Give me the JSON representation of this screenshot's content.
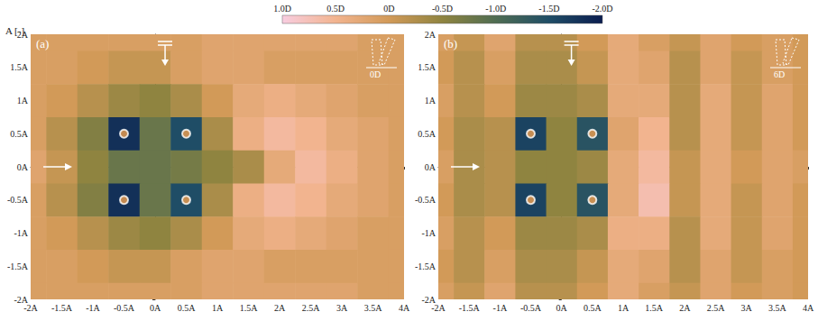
{
  "colorbar": {
    "title": "A [-]",
    "range": [
      -2,
      1
    ],
    "ticks": [
      {
        "value": 1,
        "label": "1.0D"
      },
      {
        "value": 0.5,
        "label": "0.5D"
      },
      {
        "value": 0,
        "label": "0D"
      },
      {
        "value": -0.5,
        "label": "-0.5D"
      },
      {
        "value": -1,
        "label": "-1.0D"
      },
      {
        "value": -1.5,
        "label": "-1.5D"
      },
      {
        "value": -2,
        "label": "-2.0D"
      }
    ]
  },
  "chart_data": [
    {
      "type": "heatmap",
      "title": "(a)",
      "inset_label": "0D",
      "xlim": [
        -2,
        4
      ],
      "ylim": [
        -2,
        2
      ],
      "xticks": [
        {
          "value": -2,
          "label": "-2A"
        },
        {
          "value": -1.5,
          "label": "-1.5A"
        },
        {
          "value": -1,
          "label": "-1A"
        },
        {
          "value": -0.5,
          "label": "-0.5A"
        },
        {
          "value": 0,
          "label": "0A"
        },
        {
          "value": 0.5,
          "label": "0.5A"
        },
        {
          "value": 1,
          "label": "1A"
        },
        {
          "value": 1.5,
          "label": "1.5A"
        },
        {
          "value": 2,
          "label": "2A"
        },
        {
          "value": 2.5,
          "label": "2.5A"
        },
        {
          "value": 3,
          "label": "3A"
        },
        {
          "value": 3.5,
          "label": "3.5A"
        },
        {
          "value": 4,
          "label": "4A"
        }
      ],
      "yticks": [
        {
          "value": 2,
          "label": "2A"
        },
        {
          "value": 1.5,
          "label": "1.5A"
        },
        {
          "value": 1,
          "label": "1A"
        },
        {
          "value": 0.5,
          "label": "0.5A"
        },
        {
          "value": 0,
          "label": "0A"
        },
        {
          "value": -0.5,
          "label": "-0.5A"
        },
        {
          "value": -1,
          "label": "-1A"
        },
        {
          "value": -1.5,
          "label": "-1.5A"
        },
        {
          "value": -2,
          "label": "-2A"
        }
      ],
      "x": [
        -2,
        -1.5,
        -1,
        -0.5,
        0,
        0.5,
        1,
        1.5,
        2,
        2.5,
        3,
        3.5,
        4
      ],
      "y": [
        2,
        1.5,
        1,
        0.5,
        0,
        -0.5,
        -1,
        -1.5,
        -2
      ],
      "cells": [
        [
          0.1,
          0.1,
          0.1,
          0.1,
          0.1,
          0.1,
          0.2,
          0.2,
          0.2,
          0.2,
          0.2,
          0.1,
          0.1
        ],
        [
          0.1,
          0.1,
          0.0,
          -0.1,
          -0.1,
          0.1,
          0.2,
          0.2,
          0.1,
          0.1,
          0.1,
          0.1,
          0.1
        ],
        [
          0.1,
          0.0,
          -0.2,
          -0.4,
          -0.5,
          -0.3,
          0.0,
          0.3,
          0.4,
          0.3,
          0.2,
          0.1,
          0.1
        ],
        [
          0.1,
          -0.2,
          -0.6,
          -1.8,
          -0.8,
          -1.5,
          -0.3,
          0.4,
          0.6,
          0.5,
          0.3,
          0.2,
          0.1
        ],
        [
          0.2,
          -0.1,
          -0.5,
          -0.8,
          -0.8,
          -0.7,
          -0.5,
          -0.3,
          0.3,
          0.6,
          0.4,
          0.2,
          0.1
        ],
        [
          0.1,
          -0.2,
          -0.6,
          -1.8,
          -0.8,
          -1.5,
          -0.3,
          0.4,
          0.6,
          0.5,
          0.3,
          0.2,
          0.1
        ],
        [
          0.1,
          0.0,
          -0.2,
          -0.4,
          -0.5,
          -0.3,
          0.0,
          0.3,
          0.4,
          0.3,
          0.2,
          0.1,
          0.1
        ],
        [
          0.1,
          0.1,
          0.0,
          -0.1,
          -0.1,
          0.1,
          0.2,
          0.2,
          0.1,
          0.1,
          0.1,
          0.1,
          0.1
        ],
        [
          0.1,
          0.1,
          0.1,
          0.1,
          0.1,
          0.1,
          0.2,
          0.2,
          0.2,
          0.2,
          0.2,
          0.1,
          0.1
        ]
      ],
      "piles": {
        "marker": "circle",
        "x": [
          -0.5,
          0.5,
          -0.5,
          0.5
        ],
        "y": [
          0.5,
          0.5,
          -0.5,
          -0.5
        ]
      }
    },
    {
      "type": "heatmap",
      "title": "(b)",
      "inset_label": "6D",
      "xlim": [
        -2,
        4
      ],
      "ylim": [
        -2,
        2
      ],
      "xticks": [
        {
          "value": -2,
          "label": "-2A"
        },
        {
          "value": -1.5,
          "label": "-1.5A"
        },
        {
          "value": -1,
          "label": "-1A"
        },
        {
          "value": -0.5,
          "label": "-0.5A"
        },
        {
          "value": 0,
          "label": "0A"
        },
        {
          "value": 0.5,
          "label": "0.5A"
        },
        {
          "value": 1,
          "label": "1A"
        },
        {
          "value": 1.5,
          "label": "1.5A"
        },
        {
          "value": 2,
          "label": "2A"
        },
        {
          "value": 2.5,
          "label": "2.5A"
        },
        {
          "value": 3,
          "label": "3A"
        },
        {
          "value": 3.5,
          "label": "3.5A"
        },
        {
          "value": 4,
          "label": "4A"
        }
      ],
      "yticks": [
        {
          "value": 2,
          "label": "2A"
        },
        {
          "value": 1.5,
          "label": "1.5A"
        },
        {
          "value": 1,
          "label": "1A"
        },
        {
          "value": 0.5,
          "label": "0.5A"
        },
        {
          "value": 0,
          "label": "0A"
        },
        {
          "value": -0.5,
          "label": "-0.5A"
        },
        {
          "value": -1,
          "label": "-1A"
        },
        {
          "value": -1.5,
          "label": "-1.5A"
        },
        {
          "value": -2,
          "label": "-2A"
        }
      ],
      "x": [
        -2,
        -1.5,
        -1,
        -0.5,
        0,
        0.5,
        1,
        1.5,
        2,
        2.5,
        3,
        3.5,
        4
      ],
      "y": [
        2,
        1.5,
        1,
        0.5,
        0,
        -0.5,
        -1,
        -1.5,
        -2
      ],
      "cells": [
        [
          0.1,
          -0.1,
          0.2,
          -0.2,
          -0.2,
          0.0,
          0.3,
          0.1,
          -0.1,
          0.2,
          0.0,
          0.1,
          0.0
        ],
        [
          0.0,
          -0.2,
          0.1,
          -0.3,
          -0.3,
          -0.1,
          0.3,
          0.2,
          -0.2,
          0.2,
          -0.1,
          0.1,
          0.0
        ],
        [
          0.1,
          -0.2,
          0.0,
          -0.4,
          -0.4,
          -0.3,
          0.3,
          0.3,
          -0.2,
          0.3,
          -0.1,
          0.2,
          0.0
        ],
        [
          0.0,
          -0.3,
          -0.2,
          -1.6,
          -0.5,
          -1.4,
          0.2,
          0.5,
          -0.2,
          0.3,
          -0.1,
          0.2,
          0.0
        ],
        [
          0.1,
          -0.3,
          -0.2,
          -0.5,
          -0.5,
          -0.4,
          0.3,
          0.6,
          -0.1,
          0.3,
          0.0,
          0.2,
          0.1
        ],
        [
          0.0,
          -0.3,
          -0.2,
          -1.6,
          -0.5,
          -1.4,
          0.3,
          0.7,
          -0.1,
          0.3,
          -0.1,
          0.2,
          0.0
        ],
        [
          0.1,
          -0.2,
          0.0,
          -0.4,
          -0.4,
          -0.3,
          0.4,
          0.4,
          -0.2,
          0.3,
          -0.1,
          0.2,
          0.0
        ],
        [
          0.0,
          -0.2,
          0.1,
          -0.3,
          -0.3,
          -0.1,
          0.3,
          0.2,
          -0.2,
          0.2,
          -0.1,
          0.1,
          0.0
        ],
        [
          0.1,
          -0.1,
          0.2,
          -0.2,
          -0.2,
          0.0,
          0.3,
          0.1,
          -0.1,
          0.2,
          0.0,
          0.1,
          0.0
        ]
      ],
      "piles": {
        "marker": "circle",
        "x": [
          -0.5,
          0.5,
          -0.5,
          0.5
        ],
        "y": [
          0.5,
          0.5,
          -0.5,
          -0.5
        ]
      }
    }
  ]
}
